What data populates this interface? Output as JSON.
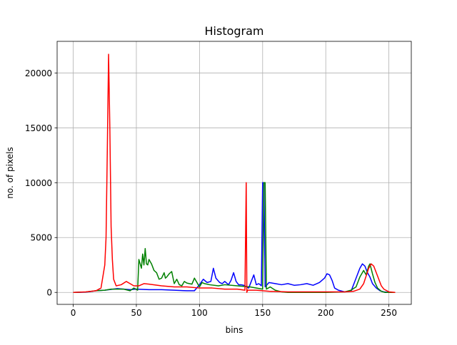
{
  "chart_data": {
    "type": "line",
    "title": "Histogram",
    "xlabel": "bins",
    "ylabel": "no. of pixels",
    "xlim": [
      -12.75,
      267.75
    ],
    "ylim": [
      -1090,
      22880
    ],
    "xticks": [
      0,
      50,
      100,
      150,
      200,
      250
    ],
    "yticks": [
      0,
      5000,
      10000,
      15000,
      20000
    ],
    "grid": true,
    "series": [
      {
        "color": "#0000ff",
        "points": [
          [
            0,
            0
          ],
          [
            10,
            20
          ],
          [
            18,
            150
          ],
          [
            25,
            200
          ],
          [
            35,
            350
          ],
          [
            45,
            250
          ],
          [
            50,
            300
          ],
          [
            60,
            250
          ],
          [
            70,
            250
          ],
          [
            80,
            200
          ],
          [
            90,
            150
          ],
          [
            96,
            150
          ],
          [
            100,
            700
          ],
          [
            103,
            1200
          ],
          [
            106,
            900
          ],
          [
            109,
            1000
          ],
          [
            111,
            2200
          ],
          [
            113,
            1300
          ],
          [
            116,
            900
          ],
          [
            118,
            800
          ],
          [
            120,
            1000
          ],
          [
            123,
            700
          ],
          [
            125,
            1100
          ],
          [
            127,
            1800
          ],
          [
            129,
            1000
          ],
          [
            131,
            700
          ],
          [
            133,
            700
          ],
          [
            135,
            650
          ],
          [
            139,
            400
          ],
          [
            141,
            1000
          ],
          [
            143,
            1600
          ],
          [
            145,
            700
          ],
          [
            147,
            800
          ],
          [
            149,
            600
          ],
          [
            150,
            10000
          ],
          [
            151,
            10000
          ],
          [
            152,
            500
          ],
          [
            155,
            900
          ],
          [
            160,
            800
          ],
          [
            165,
            700
          ],
          [
            170,
            800
          ],
          [
            175,
            650
          ],
          [
            180,
            700
          ],
          [
            185,
            800
          ],
          [
            190,
            650
          ],
          [
            195,
            900
          ],
          [
            199,
            1300
          ],
          [
            201,
            1700
          ],
          [
            203,
            1600
          ],
          [
            205,
            1100
          ],
          [
            207,
            400
          ],
          [
            210,
            200
          ],
          [
            215,
            50
          ],
          [
            220,
            100
          ],
          [
            224,
            1300
          ],
          [
            227,
            2200
          ],
          [
            229,
            2600
          ],
          [
            231,
            2400
          ],
          [
            233,
            1800
          ],
          [
            235,
            1400
          ],
          [
            237,
            800
          ],
          [
            240,
            400
          ],
          [
            243,
            150
          ],
          [
            246,
            50
          ],
          [
            250,
            0
          ],
          [
            255,
            0
          ]
        ]
      },
      {
        "color": "#008000",
        "points": [
          [
            0,
            0
          ],
          [
            10,
            40
          ],
          [
            18,
            150
          ],
          [
            25,
            200
          ],
          [
            30,
            300
          ],
          [
            40,
            300
          ],
          [
            45,
            150
          ],
          [
            48,
            400
          ],
          [
            51,
            200
          ],
          [
            52,
            3000
          ],
          [
            54,
            2200
          ],
          [
            55,
            3500
          ],
          [
            56,
            2500
          ],
          [
            57,
            4000
          ],
          [
            58,
            2600
          ],
          [
            59,
            2500
          ],
          [
            60,
            3000
          ],
          [
            62,
            2600
          ],
          [
            64,
            2000
          ],
          [
            66,
            1800
          ],
          [
            68,
            1200
          ],
          [
            70,
            1300
          ],
          [
            72,
            1800
          ],
          [
            73,
            1300
          ],
          [
            74,
            1400
          ],
          [
            76,
            1700
          ],
          [
            78,
            1900
          ],
          [
            80,
            800
          ],
          [
            82,
            1200
          ],
          [
            84,
            700
          ],
          [
            86,
            600
          ],
          [
            88,
            1000
          ],
          [
            90,
            850
          ],
          [
            92,
            800
          ],
          [
            94,
            750
          ],
          [
            96,
            1300
          ],
          [
            98,
            900
          ],
          [
            100,
            500
          ],
          [
            102,
            900
          ],
          [
            104,
            800
          ],
          [
            108,
            700
          ],
          [
            115,
            600
          ],
          [
            120,
            700
          ],
          [
            130,
            600
          ],
          [
            140,
            500
          ],
          [
            150,
            300
          ],
          [
            151,
            10000
          ],
          [
            152,
            10000
          ],
          [
            153,
            300
          ],
          [
            156,
            500
          ],
          [
            160,
            200
          ],
          [
            165,
            50
          ],
          [
            170,
            0
          ],
          [
            200,
            0
          ],
          [
            215,
            50
          ],
          [
            220,
            200
          ],
          [
            224,
            500
          ],
          [
            227,
            1400
          ],
          [
            230,
            2000
          ],
          [
            232,
            1600
          ],
          [
            234,
            2400
          ],
          [
            235,
            2600
          ],
          [
            237,
            1700
          ],
          [
            239,
            900
          ],
          [
            241,
            400
          ],
          [
            244,
            100
          ],
          [
            247,
            0
          ],
          [
            255,
            0
          ]
        ]
      },
      {
        "color": "#ff0000",
        "points": [
          [
            0,
            0
          ],
          [
            10,
            50
          ],
          [
            18,
            150
          ],
          [
            22,
            400
          ],
          [
            25,
            2500
          ],
          [
            26,
            5000
          ],
          [
            27,
            13000
          ],
          [
            28,
            21700
          ],
          [
            29,
            15000
          ],
          [
            30,
            6000
          ],
          [
            31,
            3000
          ],
          [
            32,
            1200
          ],
          [
            34,
            600
          ],
          [
            38,
            700
          ],
          [
            42,
            1000
          ],
          [
            45,
            800
          ],
          [
            48,
            600
          ],
          [
            52,
            600
          ],
          [
            56,
            800
          ],
          [
            60,
            750
          ],
          [
            70,
            600
          ],
          [
            80,
            500
          ],
          [
            90,
            500
          ],
          [
            100,
            400
          ],
          [
            110,
            400
          ],
          [
            120,
            300
          ],
          [
            130,
            300
          ],
          [
            136,
            200
          ],
          [
            137,
            10000
          ],
          [
            137.5,
            0
          ],
          [
            138,
            200
          ],
          [
            145,
            200
          ],
          [
            155,
            100
          ],
          [
            170,
            50
          ],
          [
            200,
            50
          ],
          [
            215,
            50
          ],
          [
            222,
            100
          ],
          [
            227,
            300
          ],
          [
            230,
            800
          ],
          [
            232,
            1500
          ],
          [
            234,
            2200
          ],
          [
            236,
            2600
          ],
          [
            238,
            2400
          ],
          [
            240,
            1800
          ],
          [
            242,
            1200
          ],
          [
            244,
            600
          ],
          [
            246,
            300
          ],
          [
            250,
            50
          ],
          [
            255,
            0
          ]
        ]
      }
    ]
  }
}
